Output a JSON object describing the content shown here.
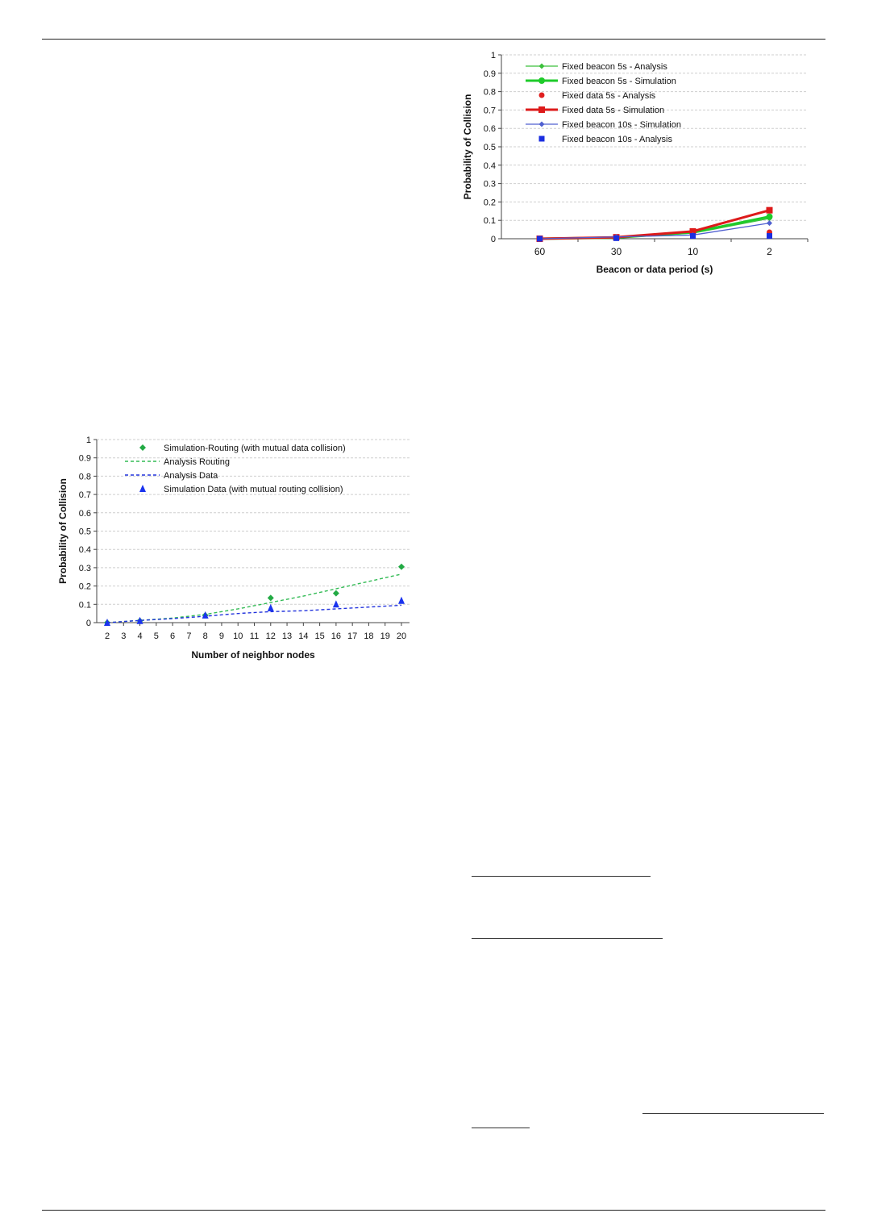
{
  "chart_data": [
    {
      "type": "line",
      "title": "",
      "xlabel": "Beacon or data period (s)",
      "ylabel": "Probability of Collision",
      "categories": [
        "60",
        "30",
        "10",
        "2"
      ],
      "ylim": [
        0,
        1
      ],
      "yticks": [
        "0",
        "0.1",
        "0.2",
        "0.3",
        "0.4",
        "0.5",
        "0.6",
        "0.7",
        "0.8",
        "0.9",
        "1"
      ],
      "grid": true,
      "legend_position": "top-left",
      "series": [
        {
          "name": "Fixed beacon 5s - Analysis",
          "color": "#3cc03c",
          "values": [
            0.0,
            0.005,
            0.03,
            0.11
          ],
          "line": "thin",
          "marker": "diamond"
        },
        {
          "name": "Fixed beacon 5s - Simulation",
          "color": "#1ecb2a",
          "values": [
            0.0,
            0.006,
            0.035,
            0.12
          ],
          "line": "thick",
          "marker": "circle"
        },
        {
          "name": "Fixed data 5s - Analysis",
          "color": "#e02020",
          "values": [
            0.0,
            0.006,
            0.03,
            0.035
          ],
          "line": "none",
          "marker": "circle"
        },
        {
          "name": "Fixed data 5s - Simulation",
          "color": "#dd1a1a",
          "values": [
            0.0,
            0.008,
            0.04,
            0.155
          ],
          "line": "thick",
          "marker": "square"
        },
        {
          "name": "Fixed beacon 10s - Simulation",
          "color": "#5060d0",
          "values": [
            0.0,
            0.01,
            0.02,
            0.085
          ],
          "line": "thin",
          "marker": "diamond"
        },
        {
          "name": "Fixed beacon 10s - Analysis",
          "color": "#1a2ee0",
          "values": [
            0.0,
            0.003,
            0.015,
            0.015
          ],
          "line": "none",
          "marker": "square"
        }
      ]
    },
    {
      "type": "line",
      "title": "",
      "xlabel": "Number of neighbor nodes",
      "ylabel": "Probability of Collision",
      "x": [
        2,
        3,
        4,
        5,
        6,
        7,
        8,
        9,
        10,
        11,
        12,
        13,
        14,
        15,
        16,
        17,
        18,
        19,
        20
      ],
      "xlim": [
        2,
        20
      ],
      "ylim": [
        0,
        1
      ],
      "yticks": [
        "0",
        "0.1",
        "0.2",
        "0.3",
        "0.4",
        "0.5",
        "0.6",
        "0.7",
        "0.8",
        "0.9",
        "1"
      ],
      "grid": true,
      "legend_position": "top",
      "series": [
        {
          "name": "Simulation-Routing (with mutual data collision)",
          "color": "#22aa44",
          "style": "markers",
          "marker": "diamond",
          "x": [
            2,
            4,
            8,
            12,
            16,
            20
          ],
          "values": [
            0.0,
            0.01,
            0.04,
            0.135,
            0.16,
            0.305
          ]
        },
        {
          "name": "Analysis Routing",
          "color": "#33bb55",
          "style": "dashed",
          "x": [
            2,
            4,
            6,
            8,
            10,
            12,
            14,
            16,
            18,
            20
          ],
          "values": [
            0.0,
            0.012,
            0.025,
            0.045,
            0.075,
            0.11,
            0.145,
            0.185,
            0.225,
            0.265
          ]
        },
        {
          "name": "Analysis Data",
          "color": "#2233dd",
          "style": "dashed",
          "x": [
            2,
            4,
            6,
            8,
            10,
            12,
            14,
            16,
            18,
            20
          ],
          "values": [
            0.0,
            0.012,
            0.022,
            0.035,
            0.05,
            0.06,
            0.065,
            0.075,
            0.085,
            0.095
          ]
        },
        {
          "name": "Simulation Data (with mutual routing collision)",
          "color": "#1a33ee",
          "style": "markers",
          "marker": "triangle",
          "x": [
            2,
            4,
            8,
            12,
            16,
            20
          ],
          "values": [
            0.0,
            0.01,
            0.04,
            0.08,
            0.1,
            0.12
          ]
        }
      ]
    }
  ]
}
